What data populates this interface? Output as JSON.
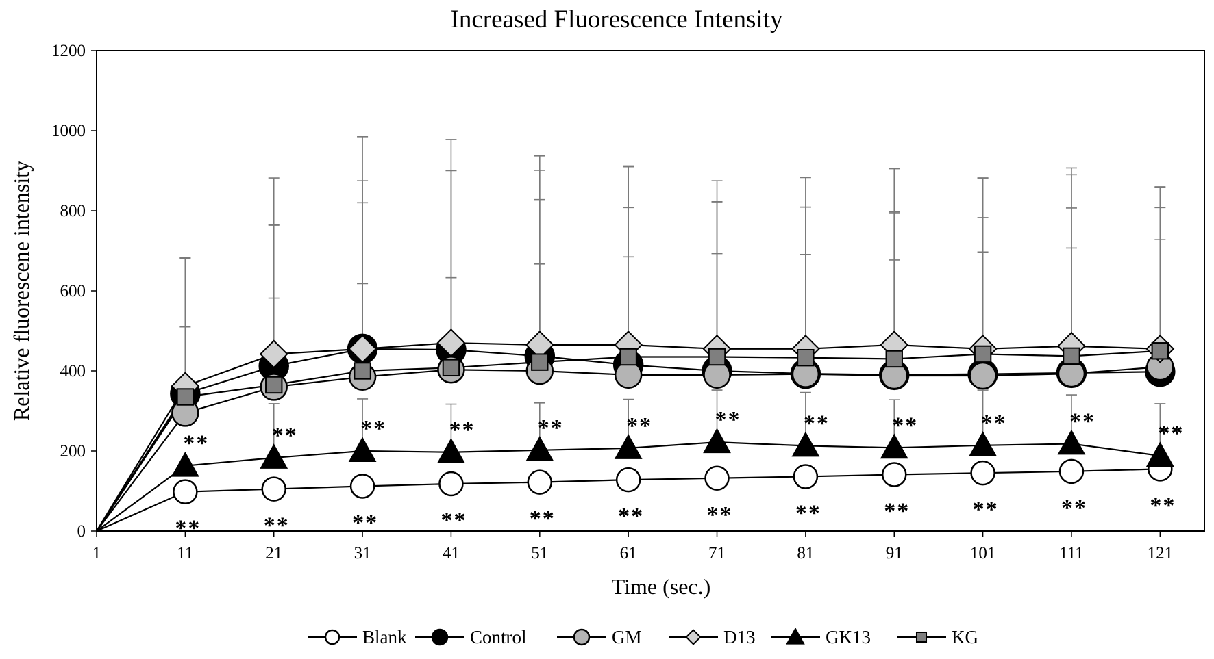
{
  "chart_data": {
    "type": "line",
    "title": "Increased Fluorescence Intensity",
    "xlabel": "Time (sec.)",
    "ylabel": "Relative fluorescene intensity",
    "x": [
      1,
      11,
      21,
      31,
      41,
      51,
      61,
      71,
      81,
      91,
      101,
      111,
      121
    ],
    "xticks": [
      "1",
      "11",
      "21",
      "31",
      "41",
      "51",
      "61",
      "71",
      "81",
      "91",
      "101",
      "111",
      "121"
    ],
    "yticks": [
      "0",
      "200",
      "400",
      "600",
      "800",
      "1000",
      "1200"
    ],
    "ylim": [
      0,
      1200
    ],
    "grid": false,
    "legend_position": "bottom",
    "significance_marker": "**",
    "series": [
      {
        "name": "Blank",
        "marker": "circle",
        "fill": "#ffffff",
        "values": [
          0,
          98,
          105,
          112,
          118,
          122,
          128,
          132,
          136,
          141,
          145,
          149,
          155
        ],
        "errors_upper": [
          0,
          0,
          0,
          0,
          0,
          0,
          0,
          0,
          0,
          0,
          0,
          0,
          0
        ]
      },
      {
        "name": "Control",
        "marker": "circle",
        "fill": "#000000",
        "values": [
          0,
          343,
          412,
          455,
          453,
          437,
          415,
          400,
          393,
          390,
          392,
          395,
          398
        ],
        "errors_upper": [
          0,
          340,
          470,
          530,
          525,
          500,
          495,
          475,
          490,
          515,
          490,
          495,
          460
        ]
      },
      {
        "name": "GM",
        "marker": "circle",
        "fill": "#b4b4b4",
        "values": [
          0,
          295,
          360,
          385,
          403,
          400,
          390,
          390,
          392,
          388,
          388,
          393,
          410
        ],
        "errors_upper": [
          0,
          215,
          405,
          435,
          498,
          428,
          418,
          433,
          417,
          410,
          395,
          414,
          398
        ]
      },
      {
        "name": "D13",
        "marker": "diamond",
        "fill": "#d2d2d2",
        "values": [
          0,
          362,
          442,
          455,
          470,
          465,
          465,
          455,
          455,
          465,
          455,
          462,
          455
        ],
        "errors_upper": [
          0,
          320,
          322,
          420,
          430,
          436,
          447,
          367,
          354,
          330,
          427,
          445,
          405
        ]
      },
      {
        "name": "GK13",
        "marker": "triangle",
        "fill": "#000000",
        "values": [
          0,
          163,
          183,
          200,
          197,
          202,
          207,
          222,
          213,
          208,
          214,
          218,
          188
        ],
        "errors_upper": [
          0,
          0,
          135,
          130,
          120,
          118,
          122,
          130,
          133,
          120,
          138,
          122,
          130
        ]
      },
      {
        "name": "KG",
        "marker": "square",
        "fill": "#7f7f7f",
        "values": [
          0,
          335,
          365,
          400,
          408,
          422,
          435,
          435,
          433,
          430,
          442,
          437,
          450
        ],
        "errors_upper": [
          0,
          345,
          217,
          218,
          225,
          245,
          250,
          258,
          258,
          247,
          255,
          270,
          278
        ]
      }
    ],
    "annotations": [
      {
        "series": "GK13",
        "label": "**",
        "x": [
          11,
          21,
          31,
          41,
          51,
          61,
          71,
          81,
          91,
          101,
          111,
          121
        ]
      },
      {
        "series": "Blank",
        "label": "**",
        "x": [
          11,
          21,
          31,
          41,
          51,
          61,
          71,
          81,
          91,
          101,
          111,
          121
        ]
      }
    ]
  }
}
